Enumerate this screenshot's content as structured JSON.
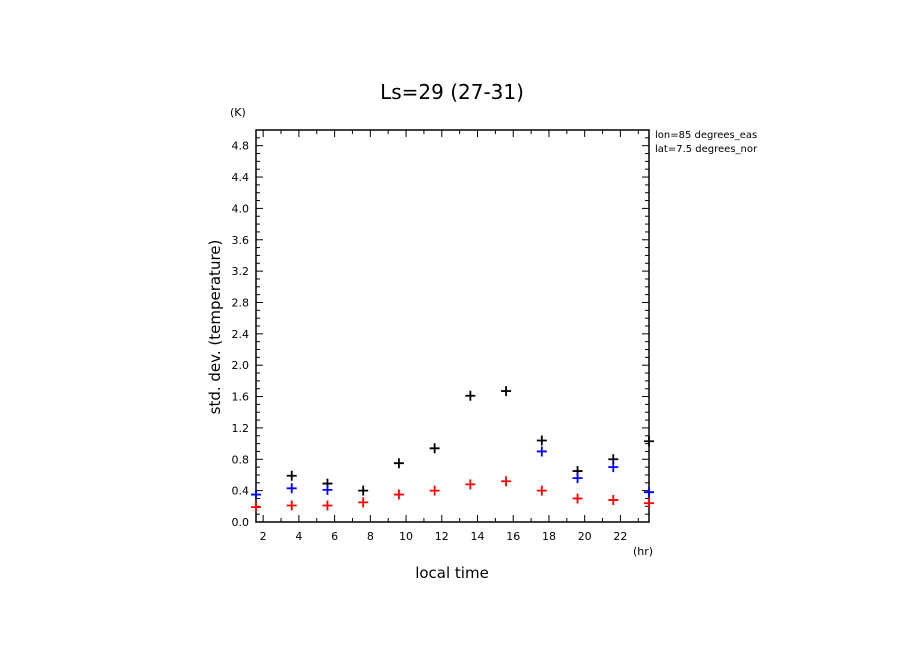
{
  "chart_data": {
    "type": "scatter",
    "title": "Ls=29 (27-31)",
    "xlabel": "local time",
    "ylabel": "std. dev. (temperature)",
    "x_unit": "(hr)",
    "y_unit": "(K)",
    "annotations": [
      "lon=85 degrees_eas",
      "lat=7.5 degrees_nor"
    ],
    "xlim": [
      1.6,
      23.6
    ],
    "ylim": [
      0.0,
      5.0
    ],
    "xticks": [
      2,
      4,
      6,
      8,
      10,
      12,
      14,
      16,
      18,
      20,
      22
    ],
    "yticks": [
      0.0,
      0.4,
      0.8,
      1.2,
      1.6,
      2.0,
      2.4,
      2.8,
      3.2,
      3.6,
      4.0,
      4.4,
      4.8
    ],
    "marker": "+",
    "grid": false,
    "series": [
      {
        "color": "#000000",
        "points": [
          [
            3.6,
            0.59
          ],
          [
            5.6,
            0.49
          ],
          [
            7.6,
            0.4
          ],
          [
            9.6,
            0.75
          ],
          [
            11.6,
            0.94
          ],
          [
            13.6,
            1.61
          ],
          [
            15.6,
            1.67
          ],
          [
            17.6,
            1.04
          ],
          [
            19.6,
            0.65
          ],
          [
            21.6,
            0.8
          ],
          [
            23.6,
            1.03
          ]
        ]
      },
      {
        "color": "#0000ff",
        "points": [
          [
            1.6,
            0.35
          ],
          [
            3.6,
            0.43
          ],
          [
            5.6,
            0.41
          ],
          [
            17.6,
            0.9
          ],
          [
            19.6,
            0.56
          ],
          [
            21.6,
            0.7
          ],
          [
            23.6,
            0.38
          ]
        ]
      },
      {
        "color": "#ff0000",
        "points": [
          [
            1.6,
            0.19
          ],
          [
            3.6,
            0.21
          ],
          [
            5.6,
            0.21
          ],
          [
            7.6,
            0.25
          ],
          [
            9.6,
            0.35
          ],
          [
            11.6,
            0.4
          ],
          [
            13.6,
            0.48
          ],
          [
            15.6,
            0.52
          ],
          [
            17.6,
            0.4
          ],
          [
            19.6,
            0.3
          ],
          [
            21.6,
            0.28
          ],
          [
            23.6,
            0.24
          ]
        ]
      }
    ]
  }
}
